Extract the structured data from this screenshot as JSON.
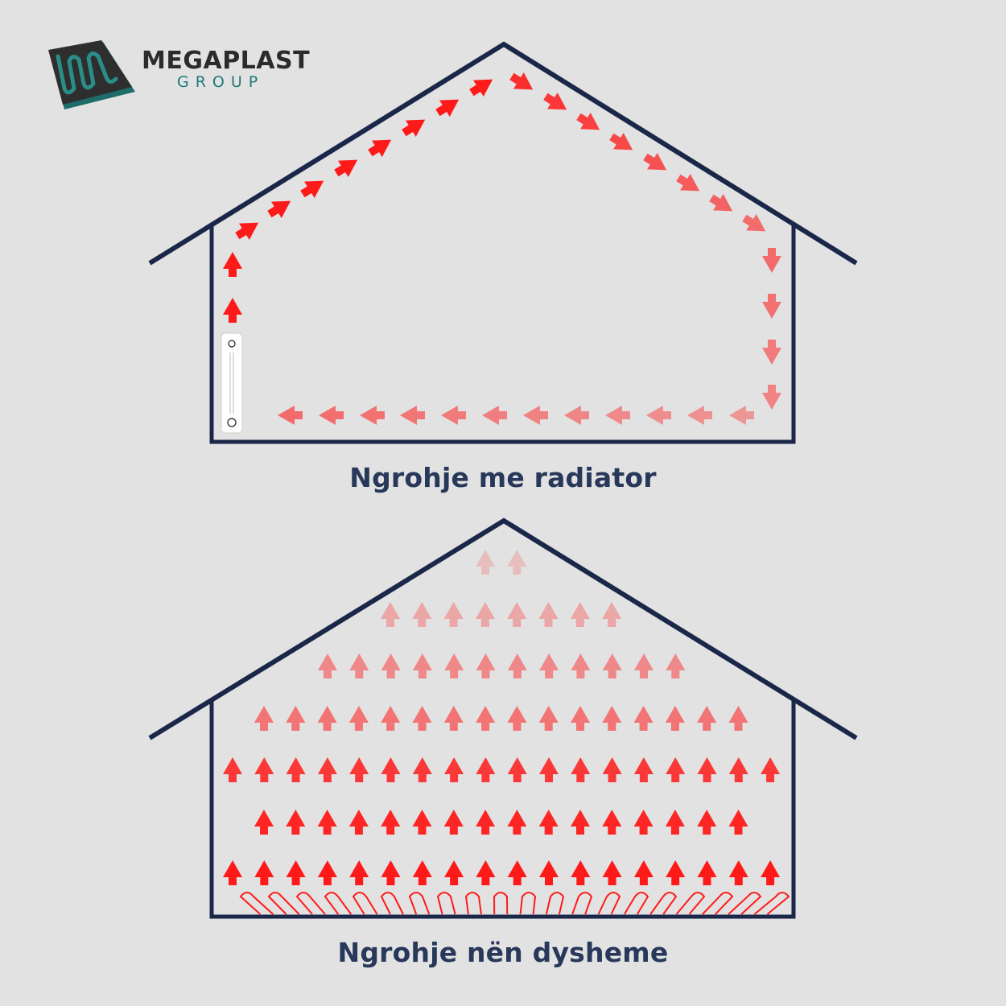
{
  "logo": {
    "brand": "MEGAPLAST",
    "sub": "GROUP",
    "icon": "heating-mat-icon"
  },
  "diagrams": [
    {
      "caption": "Ngrohje me radiator",
      "heat_source": "radiator-icon",
      "flow": "convection-loop"
    },
    {
      "caption": "Ngrohje nën dysheme",
      "heat_source": "floor-heating-coil-icon",
      "flow": "uniform-upward"
    }
  ],
  "colors": {
    "background": "#e2e2e2",
    "house_outline": "#1a2748",
    "caption": "#27385a",
    "arrow_hot": "#ff1a1a",
    "logo_dark": "#2b2b2b",
    "logo_teal": "#1e7a77"
  }
}
